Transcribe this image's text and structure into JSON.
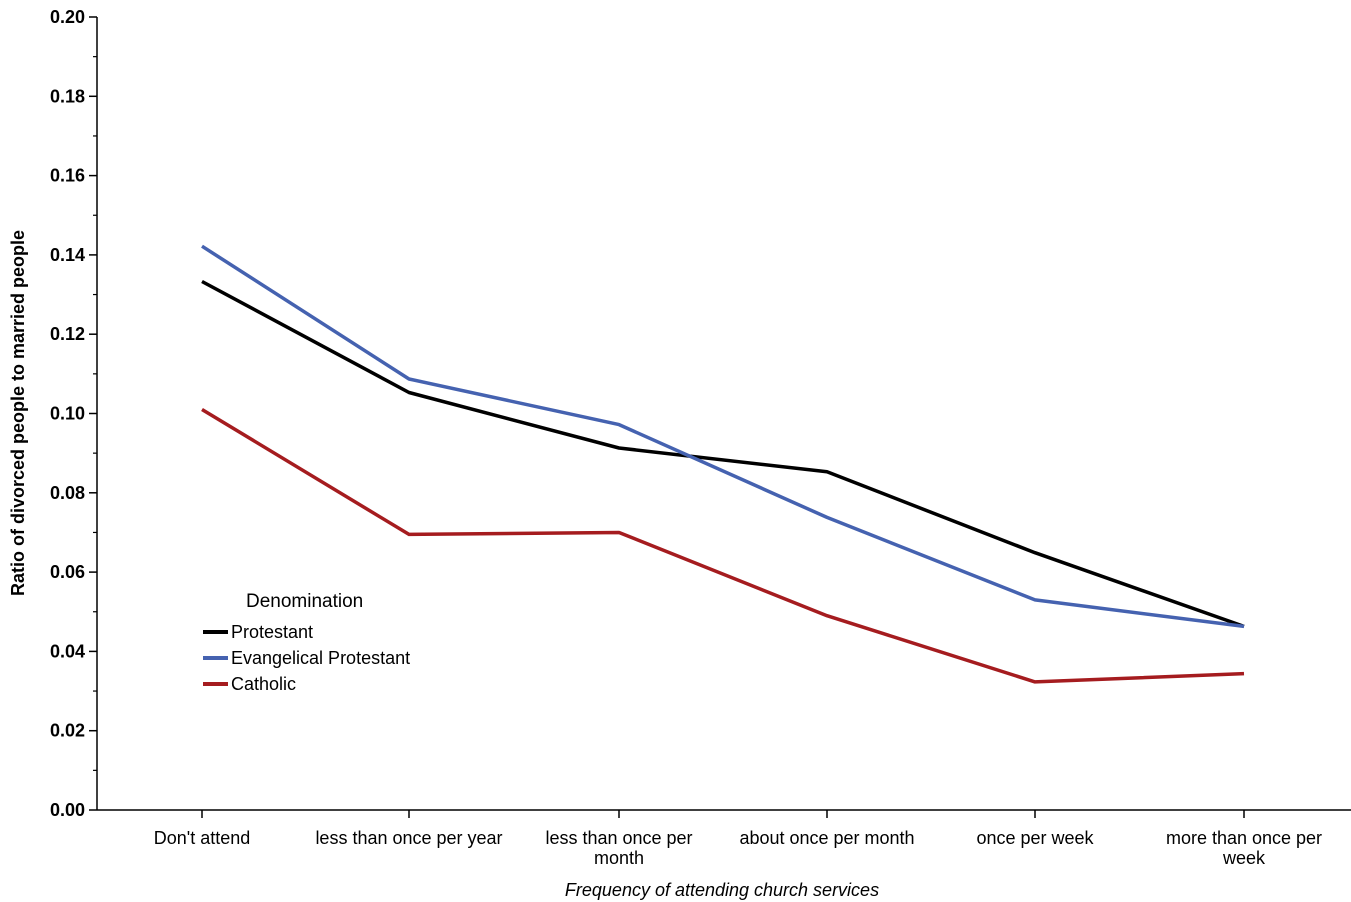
{
  "chart_data": {
    "type": "line",
    "xlabel": "Frequency of attending church services",
    "ylabel": "Ratio of divorced people to married people",
    "ylim": [
      0,
      0.2
    ],
    "yticks": [
      "0.00",
      "0.02",
      "0.04",
      "0.06",
      "0.08",
      "0.10",
      "0.12",
      "0.14",
      "0.16",
      "0.18",
      "0.20"
    ],
    "categories": [
      [
        "Don't attend"
      ],
      [
        "less than once per year"
      ],
      [
        "less than once per",
        "month"
      ],
      [
        "about once per month"
      ],
      [
        "once per week"
      ],
      [
        "more than once per",
        "week"
      ]
    ],
    "legend": {
      "title": "Denomination",
      "position": "left-lower"
    },
    "series": [
      {
        "name": "Protestant",
        "color": "#000000",
        "values": [
          0.1333,
          0.1053,
          0.0913,
          0.0853,
          0.0649,
          0.0463
        ]
      },
      {
        "name": "Evangelical Protestant",
        "color": "#4562b0",
        "values": [
          0.1422,
          0.1087,
          0.0972,
          0.0738,
          0.053,
          0.0463
        ]
      },
      {
        "name": "Catholic",
        "color": "#a51c1f",
        "values": [
          0.101,
          0.0695,
          0.07,
          0.049,
          0.0323,
          0.0344
        ]
      }
    ],
    "grid": false
  }
}
